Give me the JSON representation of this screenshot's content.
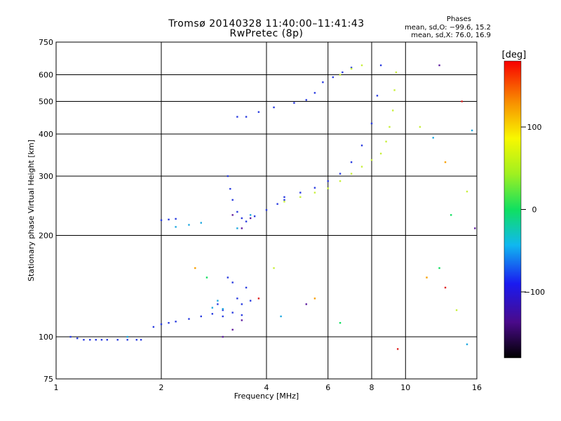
{
  "header": {
    "title_line1": "Tromsø 20140328 11:40:00–11:41:43",
    "title_line2": "RwPretec (8p)",
    "phases_heading": "Phases",
    "phases_o": "mean, sd,O: −99.6, 15.2",
    "phases_x": "mean, sd,X:  76.0, 16.9"
  },
  "chart_data": {
    "type": "scatter",
    "title": "Tromsø 20140328 11:40:00–11:41:43",
    "subtitle": "RwPretec (8p)",
    "xlabel": "Frequency [MHz]",
    "ylabel": "Stationary phase Virtual Height [km]",
    "x_scale": "log",
    "y_scale": "log",
    "xlim": [
      1,
      16
    ],
    "ylim": [
      75,
      750
    ],
    "x_ticks": [
      1,
      2,
      4,
      6,
      8,
      10,
      16
    ],
    "x_tick_labels": [
      "1",
      "2",
      "4",
      "6",
      "8",
      "10",
      "16"
    ],
    "y_ticks": [
      75,
      100,
      200,
      300,
      400,
      500,
      600,
      750
    ],
    "y_tick_labels": [
      "75",
      "100",
      "200",
      "300",
      "400",
      "500",
      "600",
      "750"
    ],
    "grid": true,
    "colorbar": {
      "label": "[deg]",
      "range": [
        -180,
        180
      ],
      "ticks": [
        -100,
        0,
        100
      ],
      "tick_labels": [
        "−100",
        "0",
        "100"
      ]
    },
    "series": [
      {
        "phase_deg": -100,
        "color": "#2a3ce0",
        "points": [
          [
            1.1,
            100
          ],
          [
            1.15,
            99
          ],
          [
            1.2,
            98
          ],
          [
            1.25,
            98
          ],
          [
            1.3,
            98
          ],
          [
            1.35,
            98
          ],
          [
            1.4,
            98
          ],
          [
            1.5,
            98
          ],
          [
            1.6,
            98
          ],
          [
            1.7,
            98
          ],
          [
            1.75,
            98
          ],
          [
            1.9,
            107
          ],
          [
            2.0,
            109
          ],
          [
            2.1,
            110
          ],
          [
            2.2,
            111
          ],
          [
            2.4,
            113
          ],
          [
            2.6,
            115
          ],
          [
            2.8,
            117
          ],
          [
            3.0,
            120
          ],
          [
            2.0,
            222
          ],
          [
            2.1,
            223
          ],
          [
            2.2,
            224
          ],
          [
            3.1,
            300
          ],
          [
            3.15,
            275
          ],
          [
            3.2,
            255
          ],
          [
            3.3,
            235
          ],
          [
            3.4,
            225
          ],
          [
            3.5,
            220
          ],
          [
            3.7,
            228
          ],
          [
            4.0,
            238
          ],
          [
            4.3,
            248
          ],
          [
            4.5,
            255
          ],
          [
            3.3,
            450
          ],
          [
            3.5,
            450
          ],
          [
            3.8,
            465
          ],
          [
            4.2,
            480
          ],
          [
            4.8,
            495
          ],
          [
            5.2,
            505
          ],
          [
            5.5,
            530
          ],
          [
            5.8,
            570
          ],
          [
            6.2,
            590
          ],
          [
            6.6,
            610
          ],
          [
            7.0,
            630
          ],
          [
            4.5,
            260
          ],
          [
            5.0,
            268
          ],
          [
            5.5,
            277
          ],
          [
            6.0,
            290
          ],
          [
            6.5,
            305
          ],
          [
            7.0,
            330
          ],
          [
            7.5,
            370
          ],
          [
            8.0,
            430
          ],
          [
            8.3,
            520
          ],
          [
            8.5,
            640
          ],
          [
            3.1,
            150
          ],
          [
            3.2,
            145
          ],
          [
            3.3,
            130
          ],
          [
            3.4,
            125
          ],
          [
            3.5,
            140
          ],
          [
            2.9,
            125
          ],
          [
            3.0,
            115
          ],
          [
            3.2,
            118
          ],
          [
            3.4,
            116
          ],
          [
            3.6,
            128
          ]
        ]
      },
      {
        "phase_deg": 80,
        "color": "#c8f03c",
        "points": [
          [
            4.5,
            252
          ],
          [
            5.0,
            260
          ],
          [
            5.5,
            268
          ],
          [
            6.0,
            276
          ],
          [
            6.5,
            290
          ],
          [
            7.0,
            305
          ],
          [
            7.5,
            320
          ],
          [
            8.0,
            335
          ],
          [
            8.5,
            350
          ],
          [
            8.8,
            380
          ],
          [
            9.0,
            420
          ],
          [
            9.2,
            470
          ],
          [
            9.3,
            540
          ],
          [
            9.4,
            610
          ],
          [
            6.5,
            600
          ],
          [
            7.0,
            625
          ],
          [
            7.5,
            640
          ]
        ]
      },
      {
        "phase_deg": -60,
        "color": "#1ea8e0",
        "points": [
          [
            2.2,
            212
          ],
          [
            2.4,
            215
          ],
          [
            2.6,
            218
          ],
          [
            2.8,
            122
          ],
          [
            2.9,
            128
          ],
          [
            3.0,
            121
          ],
          [
            3.3,
            210
          ],
          [
            3.6,
            230
          ],
          [
            1.6,
            100
          ]
        ]
      },
      {
        "phase_deg": -150,
        "color": "#6020a0",
        "points": [
          [
            3.2,
            230
          ],
          [
            3.4,
            210
          ],
          [
            3.6,
            225
          ],
          [
            3.0,
            100
          ],
          [
            3.2,
            105
          ],
          [
            3.4,
            112
          ]
        ]
      }
    ],
    "scatter_outliers": [
      [
        2.5,
        160
      ],
      [
        2.7,
        150
      ],
      [
        3.8,
        130
      ],
      [
        4.2,
        160
      ],
      [
        4.4,
        115
      ],
      [
        5.2,
        125
      ],
      [
        5.5,
        130
      ],
      [
        6.5,
        110
      ],
      [
        9.5,
        92
      ],
      [
        11.0,
        420
      ],
      [
        12.0,
        390
      ],
      [
        12.5,
        640
      ],
      [
        13.0,
        330
      ],
      [
        13.5,
        230
      ],
      [
        14.5,
        500
      ],
      [
        15.0,
        270
      ],
      [
        15.5,
        410
      ],
      [
        15.8,
        210
      ],
      [
        11.5,
        150
      ],
      [
        12.5,
        160
      ],
      [
        13.0,
        140
      ],
      [
        14.0,
        120
      ],
      [
        15.0,
        95
      ]
    ]
  }
}
